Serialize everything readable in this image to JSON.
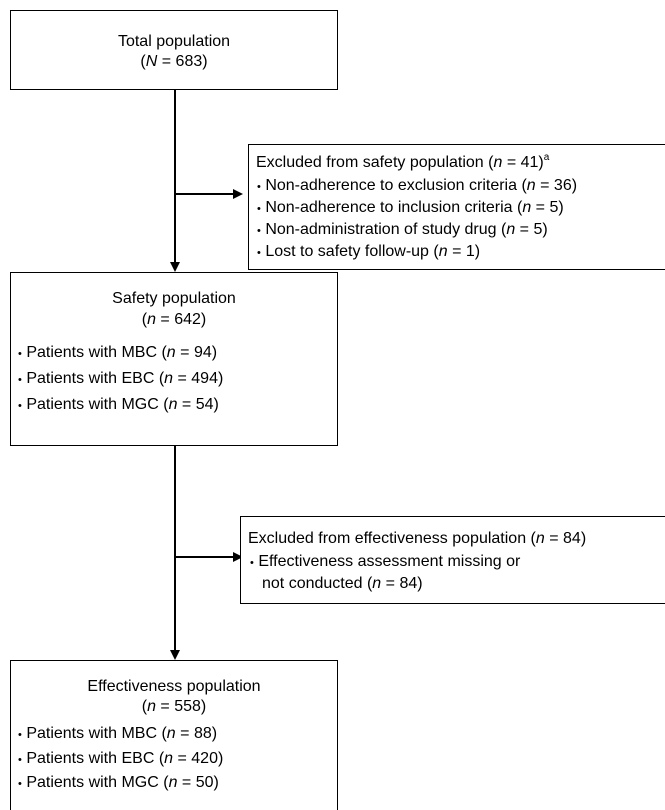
{
  "total": {
    "title": "Total population",
    "count_prefix": "(",
    "var": "N",
    "count_suffix": " = 683)"
  },
  "excluded_safety": {
    "title_prefix": "Excluded from safety population (",
    "var": "n",
    "title_suffix": " = 41)",
    "footnote": "a",
    "items": [
      {
        "label": "Non-adherence to exclusion criteria (",
        "var": "n",
        "suffix": " = 36)"
      },
      {
        "label": "Non-adherence to inclusion criteria (",
        "var": "n",
        "suffix": " = 5)"
      },
      {
        "label": "Non-administration of study drug (",
        "var": "n",
        "suffix": " = 5)"
      },
      {
        "label": "Lost to safety follow-up (",
        "var": "n",
        "suffix": " = 1)"
      }
    ]
  },
  "safety": {
    "title": "Safety population",
    "count_prefix": "(",
    "var": "n",
    "count_suffix": " = 642)",
    "items": [
      {
        "label": "Patients with MBC (",
        "var": "n",
        "suffix": " = 94)"
      },
      {
        "label": "Patients with EBC (",
        "var": "n",
        "suffix": " = 494)"
      },
      {
        "label": "Patients with MGC (",
        "var": "n",
        "suffix": " = 54)"
      }
    ]
  },
  "excluded_effectiveness": {
    "title_prefix": "Excluded from effectiveness population (",
    "var": "n",
    "title_suffix": " = 84)",
    "item_line1": "Effectiveness assessment missing or",
    "item_line2_prefix": "not conducted (",
    "item_var": "n",
    "item_line2_suffix": " = 84)"
  },
  "effectiveness": {
    "title": "Effectiveness population",
    "count_prefix": "(",
    "var": "n",
    "count_suffix": " = 558)",
    "items": [
      {
        "label": "Patients with MBC (",
        "var": "n",
        "suffix": " = 88)"
      },
      {
        "label": "Patients with EBC (",
        "var": "n",
        "suffix": " = 420)"
      },
      {
        "label": "Patients with MGC (",
        "var": "n",
        "suffix": " = 50)"
      }
    ]
  },
  "bullet": "•"
}
